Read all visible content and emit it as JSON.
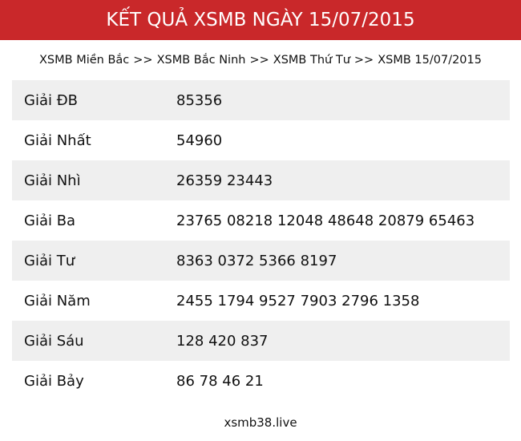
{
  "header": {
    "title": "KẾT QUẢ XSMB NGÀY 15/07/2015"
  },
  "breadcrumb": [
    {
      "label": "XSMB Miền Bắc"
    },
    {
      "label": "XSMB Bắc Ninh"
    },
    {
      "label": "XSMB Thứ Tư"
    },
    {
      "label": "XSMB 15/07/2015"
    }
  ],
  "breadcrumb_sep": ">>",
  "results": [
    {
      "prize": "Giải ĐB",
      "numbers": "85356"
    },
    {
      "prize": "Giải Nhất",
      "numbers": "54960"
    },
    {
      "prize": "Giải Nhì",
      "numbers": "26359 23443"
    },
    {
      "prize": "Giải Ba",
      "numbers": "23765 08218 12048 48648 20879 65463"
    },
    {
      "prize": "Giải Tư",
      "numbers": "8363 0372 5366 8197"
    },
    {
      "prize": "Giải Năm",
      "numbers": "2455 1794 9527 7903 2796 1358"
    },
    {
      "prize": "Giải Sáu",
      "numbers": "128 420 837"
    },
    {
      "prize": "Giải Bảy",
      "numbers": "86 78 46 21"
    }
  ],
  "footer": {
    "site": "xsmb38.live"
  },
  "colors": {
    "header_bg": "#c9282a",
    "row_alt": "#efefef"
  }
}
